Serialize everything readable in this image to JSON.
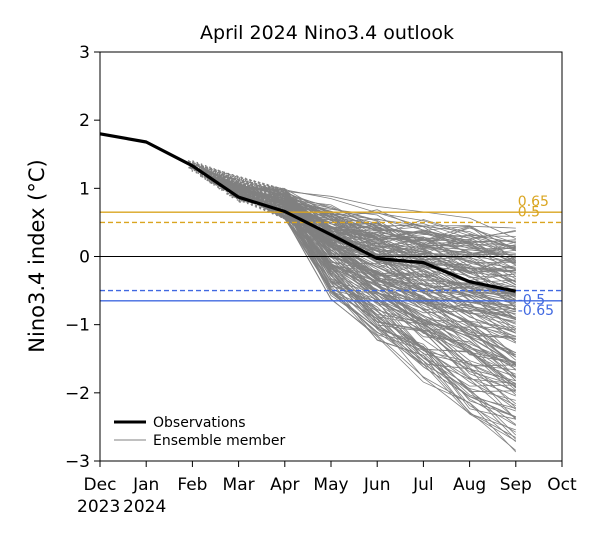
{
  "chart_data": {
    "type": "line",
    "title": "April 2024 Nino3.4 outlook",
    "xlabel": "",
    "ylabel": "Nino3.4 index (°C)",
    "ylim": [
      -3,
      3
    ],
    "xlim": [
      0,
      10
    ],
    "yticks": [
      -3,
      -2,
      -1,
      0,
      1,
      2,
      3
    ],
    "ytick_labels": [
      "−3",
      "−2",
      "−1",
      "0",
      "1",
      "2",
      "3"
    ],
    "x_tick_labels": [
      "Dec",
      "Jan",
      "Feb",
      "Mar",
      "Apr",
      "May",
      "Jun",
      "Jul",
      "Aug",
      "Sep",
      "Oct"
    ],
    "x_year_labels": [
      {
        "x": 0,
        "text": "2023"
      },
      {
        "x": 1,
        "text": "2024"
      }
    ],
    "observations": {
      "name": "Observations",
      "x": [
        0,
        1,
        2,
        3,
        4,
        5,
        6,
        7,
        8,
        9
      ],
      "y": [
        1.8,
        1.68,
        1.33,
        0.87,
        0.66,
        0.32,
        -0.03,
        -0.09,
        -0.37,
        -0.51
      ]
    },
    "ensemble": {
      "name": "Ensemble member",
      "members": 200,
      "x": [
        4,
        5,
        6,
        7,
        8,
        9
      ],
      "start_range": [
        0.55,
        1.0
      ],
      "sep_range": [
        -2.8,
        0.3
      ],
      "min_value": -3.0
    },
    "reference_lines": [
      {
        "value": 0.65,
        "label": "0.65",
        "style": "solid",
        "color": "#DAA520"
      },
      {
        "value": 0.5,
        "label": "0.5",
        "style": "dashed",
        "color": "#DAA520"
      },
      {
        "value": 0,
        "label": "",
        "style": "solid",
        "color": "#000000"
      },
      {
        "value": -0.5,
        "label": "-0.5",
        "style": "dashed",
        "color": "#4169E1"
      },
      {
        "value": -0.65,
        "label": "-0.65",
        "style": "solid",
        "color": "#4169E1"
      }
    ],
    "legend": {
      "position": "lower-left",
      "entries": [
        "Observations",
        "Ensemble member"
      ]
    }
  }
}
